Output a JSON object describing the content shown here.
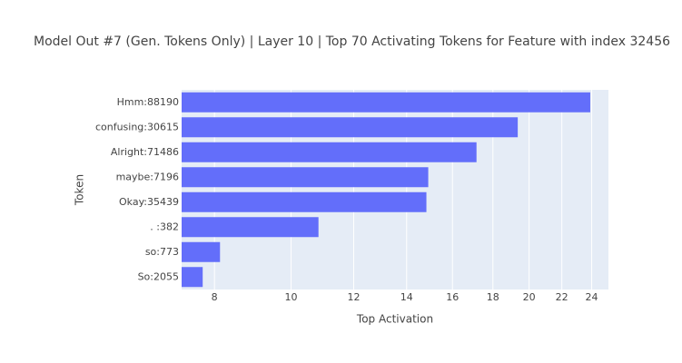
{
  "chart_data": {
    "type": "barh",
    "title": "Model Out #7 (Gen. Tokens Only) | Layer 10 | Top 70 Activating Tokens for Feature with index 32456",
    "categories": [
      "Hmm:88190",
      "confusing:30615",
      "Alright:71486",
      "maybe:7196",
      "Okay:35439",
      ". :382",
      "so:773",
      "So:2055"
    ],
    "values": [
      23.9,
      19.35,
      17.16,
      14.91,
      14.83,
      10.83,
      8.13,
      7.73
    ],
    "color": "#636efa",
    "x_label": "Top Activation",
    "y_label": "Token",
    "log_x": true,
    "xlim": [
      7.27,
      25.2
    ],
    "xticks": [
      8,
      10,
      12,
      14,
      16,
      18,
      20,
      22,
      24
    ],
    "grid": true
  }
}
